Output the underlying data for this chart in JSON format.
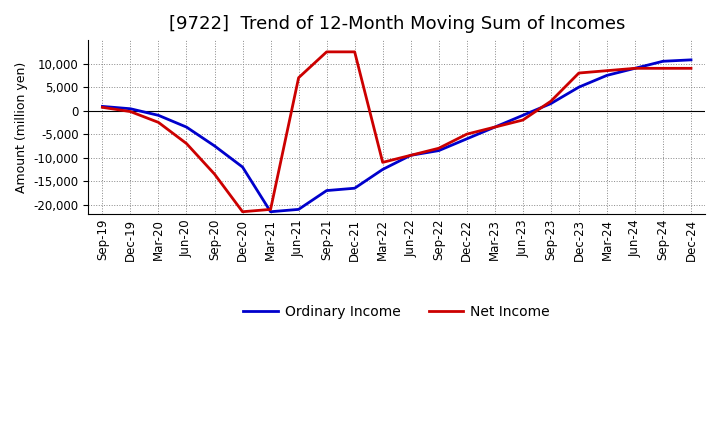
{
  "title": "[9722]  Trend of 12-Month Moving Sum of Incomes",
  "ylabel": "Amount (million yen)",
  "background_color": "#ffffff",
  "grid_color": "#888888",
  "ordinary_income_color": "#0000cc",
  "net_income_color": "#cc0000",
  "x_labels": [
    "Sep-19",
    "Dec-19",
    "Mar-20",
    "Jun-20",
    "Sep-20",
    "Dec-20",
    "Mar-21",
    "Jun-21",
    "Sep-21",
    "Dec-21",
    "Mar-22",
    "Jun-22",
    "Sep-22",
    "Dec-22",
    "Mar-23",
    "Jun-23",
    "Sep-23",
    "Dec-23",
    "Mar-24",
    "Jun-24",
    "Sep-24",
    "Dec-24"
  ],
  "ordinary_income": [
    900,
    400,
    -1000,
    -3500,
    -7500,
    -12000,
    -21500,
    -21000,
    -17000,
    -16500,
    -12500,
    -9500,
    -8500,
    -6000,
    -3500,
    -1000,
    1500,
    5000,
    7500,
    9000,
    10500,
    10800
  ],
  "net_income": [
    700,
    -200,
    -2500,
    -7000,
    -13500,
    -21500,
    -21000,
    7000,
    12500,
    12500,
    -11000,
    -9500,
    -8000,
    -5000,
    -3500,
    -2000,
    2000,
    8000,
    8500,
    9000,
    9000,
    9000
  ],
  "ylim": [
    -22000,
    15000
  ],
  "yticks": [
    -20000,
    -15000,
    -10000,
    -5000,
    0,
    5000,
    10000
  ],
  "legend_labels": [
    "Ordinary Income",
    "Net Income"
  ],
  "title_fontsize": 13,
  "axis_fontsize": 9,
  "tick_fontsize": 8.5
}
